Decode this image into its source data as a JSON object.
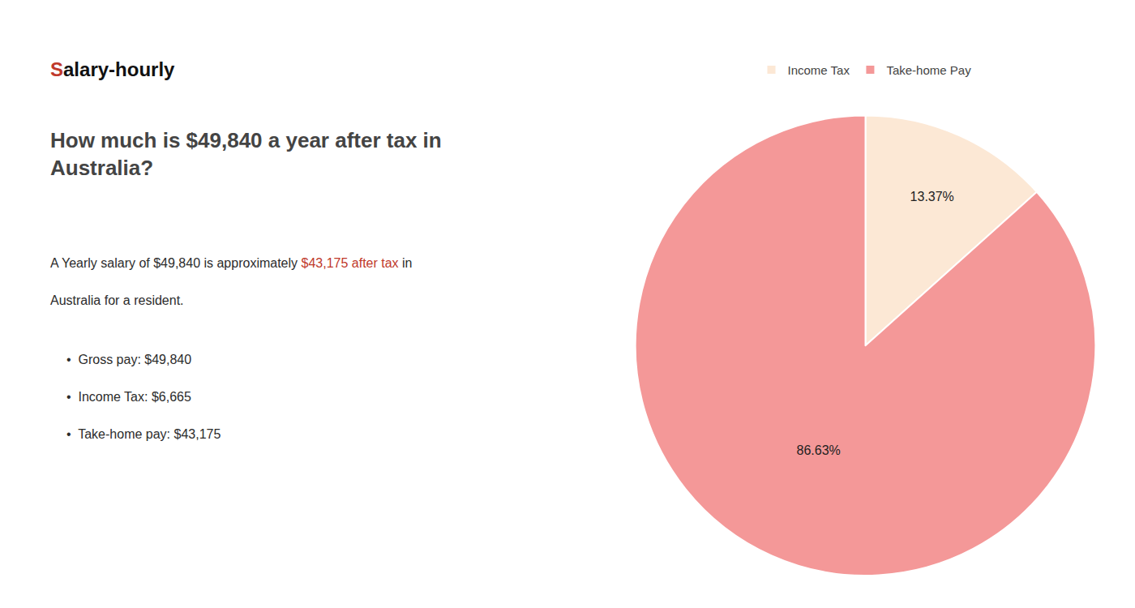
{
  "chart_data": {
    "type": "pie",
    "title": [
      "How much is $49,840 a year after tax in",
      "Australia?"
    ],
    "categories": [
      "Income Tax",
      "Take-home Pay"
    ],
    "values": [
      13.37,
      86.63
    ],
    "value_labels": [
      "13.37%",
      "86.63%"
    ],
    "colors": [
      "#fce8d5",
      "#f49898"
    ],
    "color": "#222222",
    "data_labels": true,
    "legend": "top",
    "annotations": [
      [
        {
          "text": "S",
          "color": "#c0392b"
        },
        {
          "text": "alary-hourly",
          "color": "#111111"
        }
      ],
      [
        {
          "text": "A Yearly salary of $49,840 is approximately ",
          "color": "#2c2c2c"
        },
        {
          "text": "$43,175 after tax",
          "color": "#c0392b"
        },
        {
          "text": " in",
          "color": "#2c2c2c"
        }
      ],
      [
        {
          "text": "Australia for a resident.",
          "color": "#2c2c2c"
        }
      ],
      [
        {
          "text": "•  Gross pay: $49,840",
          "color": "#2c2c2c"
        }
      ],
      [
        {
          "text": "•  Income Tax: $6,665",
          "color": "#2c2c2c"
        }
      ],
      [
        {
          "text": "•  Take-home pay: $43,175",
          "color": "#2c2c2c"
        }
      ]
    ]
  }
}
